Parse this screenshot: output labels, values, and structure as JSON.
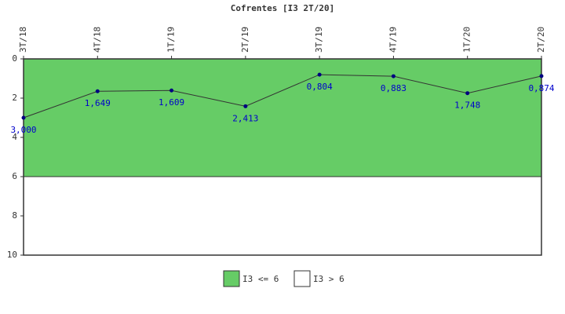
{
  "chart_data": {
    "type": "line",
    "title": "Cofrentes [I3 2T/20]",
    "categories": [
      "3T/18",
      "4T/18",
      "1T/19",
      "2T/19",
      "3T/19",
      "4T/19",
      "1T/20",
      "2T/20"
    ],
    "values": [
      3.0,
      1.649,
      1.609,
      2.413,
      0.804,
      0.883,
      1.748,
      0.874
    ],
    "value_labels": [
      "3,000",
      "1,649",
      "1,609",
      "2,413",
      "0,804",
      "0,883",
      "1,748",
      "0,874"
    ],
    "color": "#333333",
    "marker_color": "#000080",
    "label_color": "#0000cc",
    "ylim": [
      0,
      10
    ],
    "yticks": [
      0,
      2,
      4,
      6,
      8,
      10
    ],
    "y_reversed": true,
    "bands": [
      {
        "name": "I3 <= 6",
        "color": "#66cc66",
        "range": [
          0,
          6
        ]
      },
      {
        "name": "I3 > 6",
        "color": "#ffffff",
        "range": [
          6,
          10
        ]
      }
    ]
  }
}
